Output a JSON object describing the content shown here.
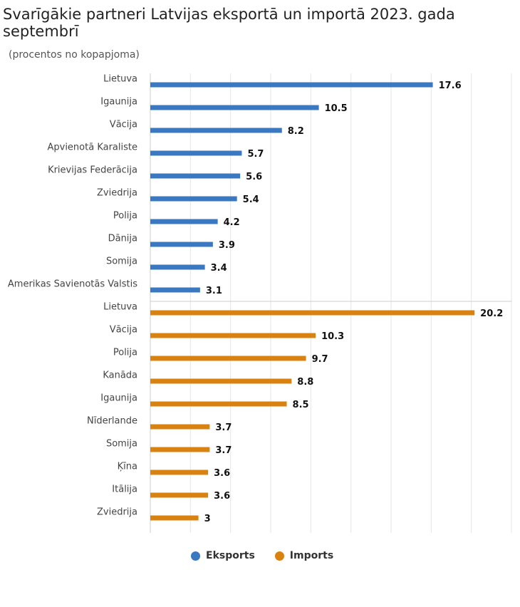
{
  "header": {
    "title": "Svarīgākie partneri Latvijas eksportā un importā 2023. gada septembrī",
    "subtitle": "(procentos no kopapjoma)"
  },
  "legend": {
    "items": [
      {
        "label": "Eksports",
        "color": "#3a78c2"
      },
      {
        "label": "Imports",
        "color": "#d9820f"
      }
    ]
  },
  "chart_data": {
    "type": "bar",
    "orientation": "horizontal",
    "title": "Svarīgākie partneri Latvijas eksportā un importā 2023. gada septembrī",
    "subtitle": "(procentos no kopapjoma)",
    "xlim": [
      0,
      22.5
    ],
    "grid": true,
    "legend_position": "bottom",
    "series": [
      {
        "name": "Eksports",
        "color": "#3a78c2",
        "categories": [
          "Lietuva",
          "Igaunija",
          "Vācija",
          "Apvienotā Karaliste",
          "Krievijas Federācija",
          "Zviedrija",
          "Polija",
          "Dānija",
          "Somija",
          "Amerikas Savienotās Valstis"
        ],
        "values": [
          17.6,
          10.5,
          8.2,
          5.7,
          5.6,
          5.4,
          4.2,
          3.9,
          3.4,
          3.1
        ],
        "labels": [
          "17.6",
          "10.5",
          "8.2",
          "5.7",
          "5.6",
          "5.4",
          "4.2",
          "3.9",
          "3.4",
          "3.1"
        ]
      },
      {
        "name": "Imports",
        "color": "#d9820f",
        "categories": [
          "Lietuva",
          "Vācija",
          "Polija",
          "Kanāda",
          "Igaunija",
          "Nīderlande",
          "Somija",
          "Ķīna",
          "Itālija",
          "Zviedrija"
        ],
        "values": [
          20.2,
          10.3,
          9.7,
          8.8,
          8.5,
          3.7,
          3.7,
          3.6,
          3.6,
          3
        ],
        "labels": [
          "20.2",
          "10.3",
          "9.7",
          "8.8",
          "8.5",
          "3.7",
          "3.7",
          "3.6",
          "3.6",
          "3"
        ]
      }
    ]
  }
}
